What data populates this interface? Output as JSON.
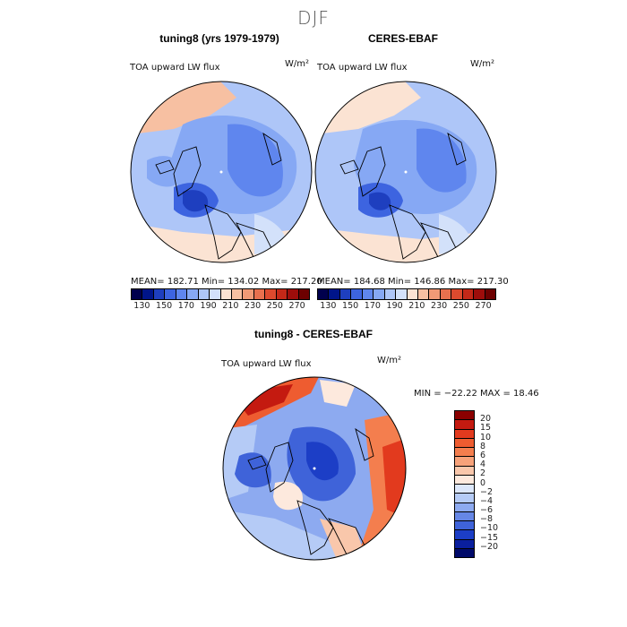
{
  "title": "DJF",
  "panels": [
    {
      "id": "model",
      "title": "tuning8 (yrs 1979-1979)",
      "variable": "TOA upward LW flux",
      "units": "W/m²",
      "stats": "MEAN= 182.71   Min= 134.02   Max= 217.20"
    },
    {
      "id": "obs",
      "title": "CERES-EBAF",
      "variable": "TOA upward LW flux",
      "units": "W/m²",
      "stats": "MEAN= 184.68   Min= 146.86   Max= 217.30"
    },
    {
      "id": "diff",
      "title": "tuning8 - CERES-EBAF",
      "variable": "TOA upward LW flux",
      "units": "W/m²",
      "stats": "MIN = −22.22  MAX =  18.46"
    }
  ],
  "colorbar_abs": {
    "labels": [
      "130",
      "150",
      "170",
      "190",
      "210",
      "230",
      "250",
      "270"
    ],
    "colors": [
      "#00004d",
      "#00158a",
      "#1e3fbf",
      "#3d64e0",
      "#5f86ee",
      "#86a8f4",
      "#aec6f8",
      "#d3e1fa",
      "#fbe3d3",
      "#f7c0a2",
      "#f19a76",
      "#e8704e",
      "#dc4a2e",
      "#c42818",
      "#9e0d0b",
      "#6d0000"
    ]
  },
  "colorbar_diff": {
    "labels": [
      "20",
      "15",
      "10",
      "8",
      "6",
      "4",
      "2",
      "0",
      "−2",
      "−4",
      "−6",
      "−8",
      "−10",
      "−15",
      "−20"
    ],
    "colors": [
      "#8b0000",
      "#c41a10",
      "#e23a1e",
      "#ee5c30",
      "#f47e4e",
      "#f7a27a",
      "#f9c7ab",
      "#fde9dd",
      "#dce7fa",
      "#b5cbf6",
      "#8daaf0",
      "#6687e6",
      "#3f63d9",
      "#1c3ec6",
      "#0a1f9e",
      "#000a6a"
    ]
  }
}
